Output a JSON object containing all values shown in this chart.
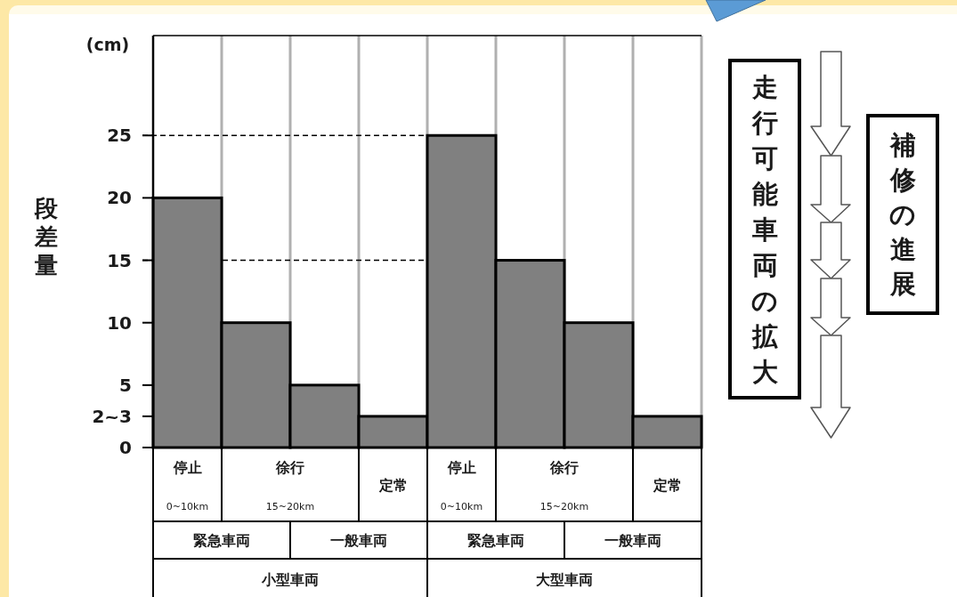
{
  "chart_data": {
    "type": "bar",
    "ylabel": "段差量",
    "categories": [
      "停止\n0~10km",
      null,
      null,
      "定常",
      "停止\n0~10km",
      null,
      null,
      "定常"
    ],
    "values": [
      20,
      10,
      5,
      2.5,
      25,
      15,
      10,
      2.5
    ],
    "color": "#808080",
    "ylim": [
      0,
      33
    ],
    "yticks": [
      0,
      {
        "value": 2.5,
        "label": "2~3"
      },
      5,
      10,
      15,
      20,
      25
    ],
    "grid": "x",
    "ref_lines": [
      {
        "axis": "y",
        "value": 25,
        "color": "#000000",
        "line_style": "dashed"
      },
      {
        "axis": "y",
        "value": 15,
        "color": "#000000",
        "line_style": "dashed"
      }
    ],
    "annotations": [
      "(cm)",
      "徐行\n15~20km",
      "徐行\n15~20km",
      "緊急車両",
      "一般車両",
      "緊急車両",
      "一般車両",
      "小型車両",
      "大型車両",
      "走行可能車両の拡大",
      "補修の進展"
    ]
  }
}
